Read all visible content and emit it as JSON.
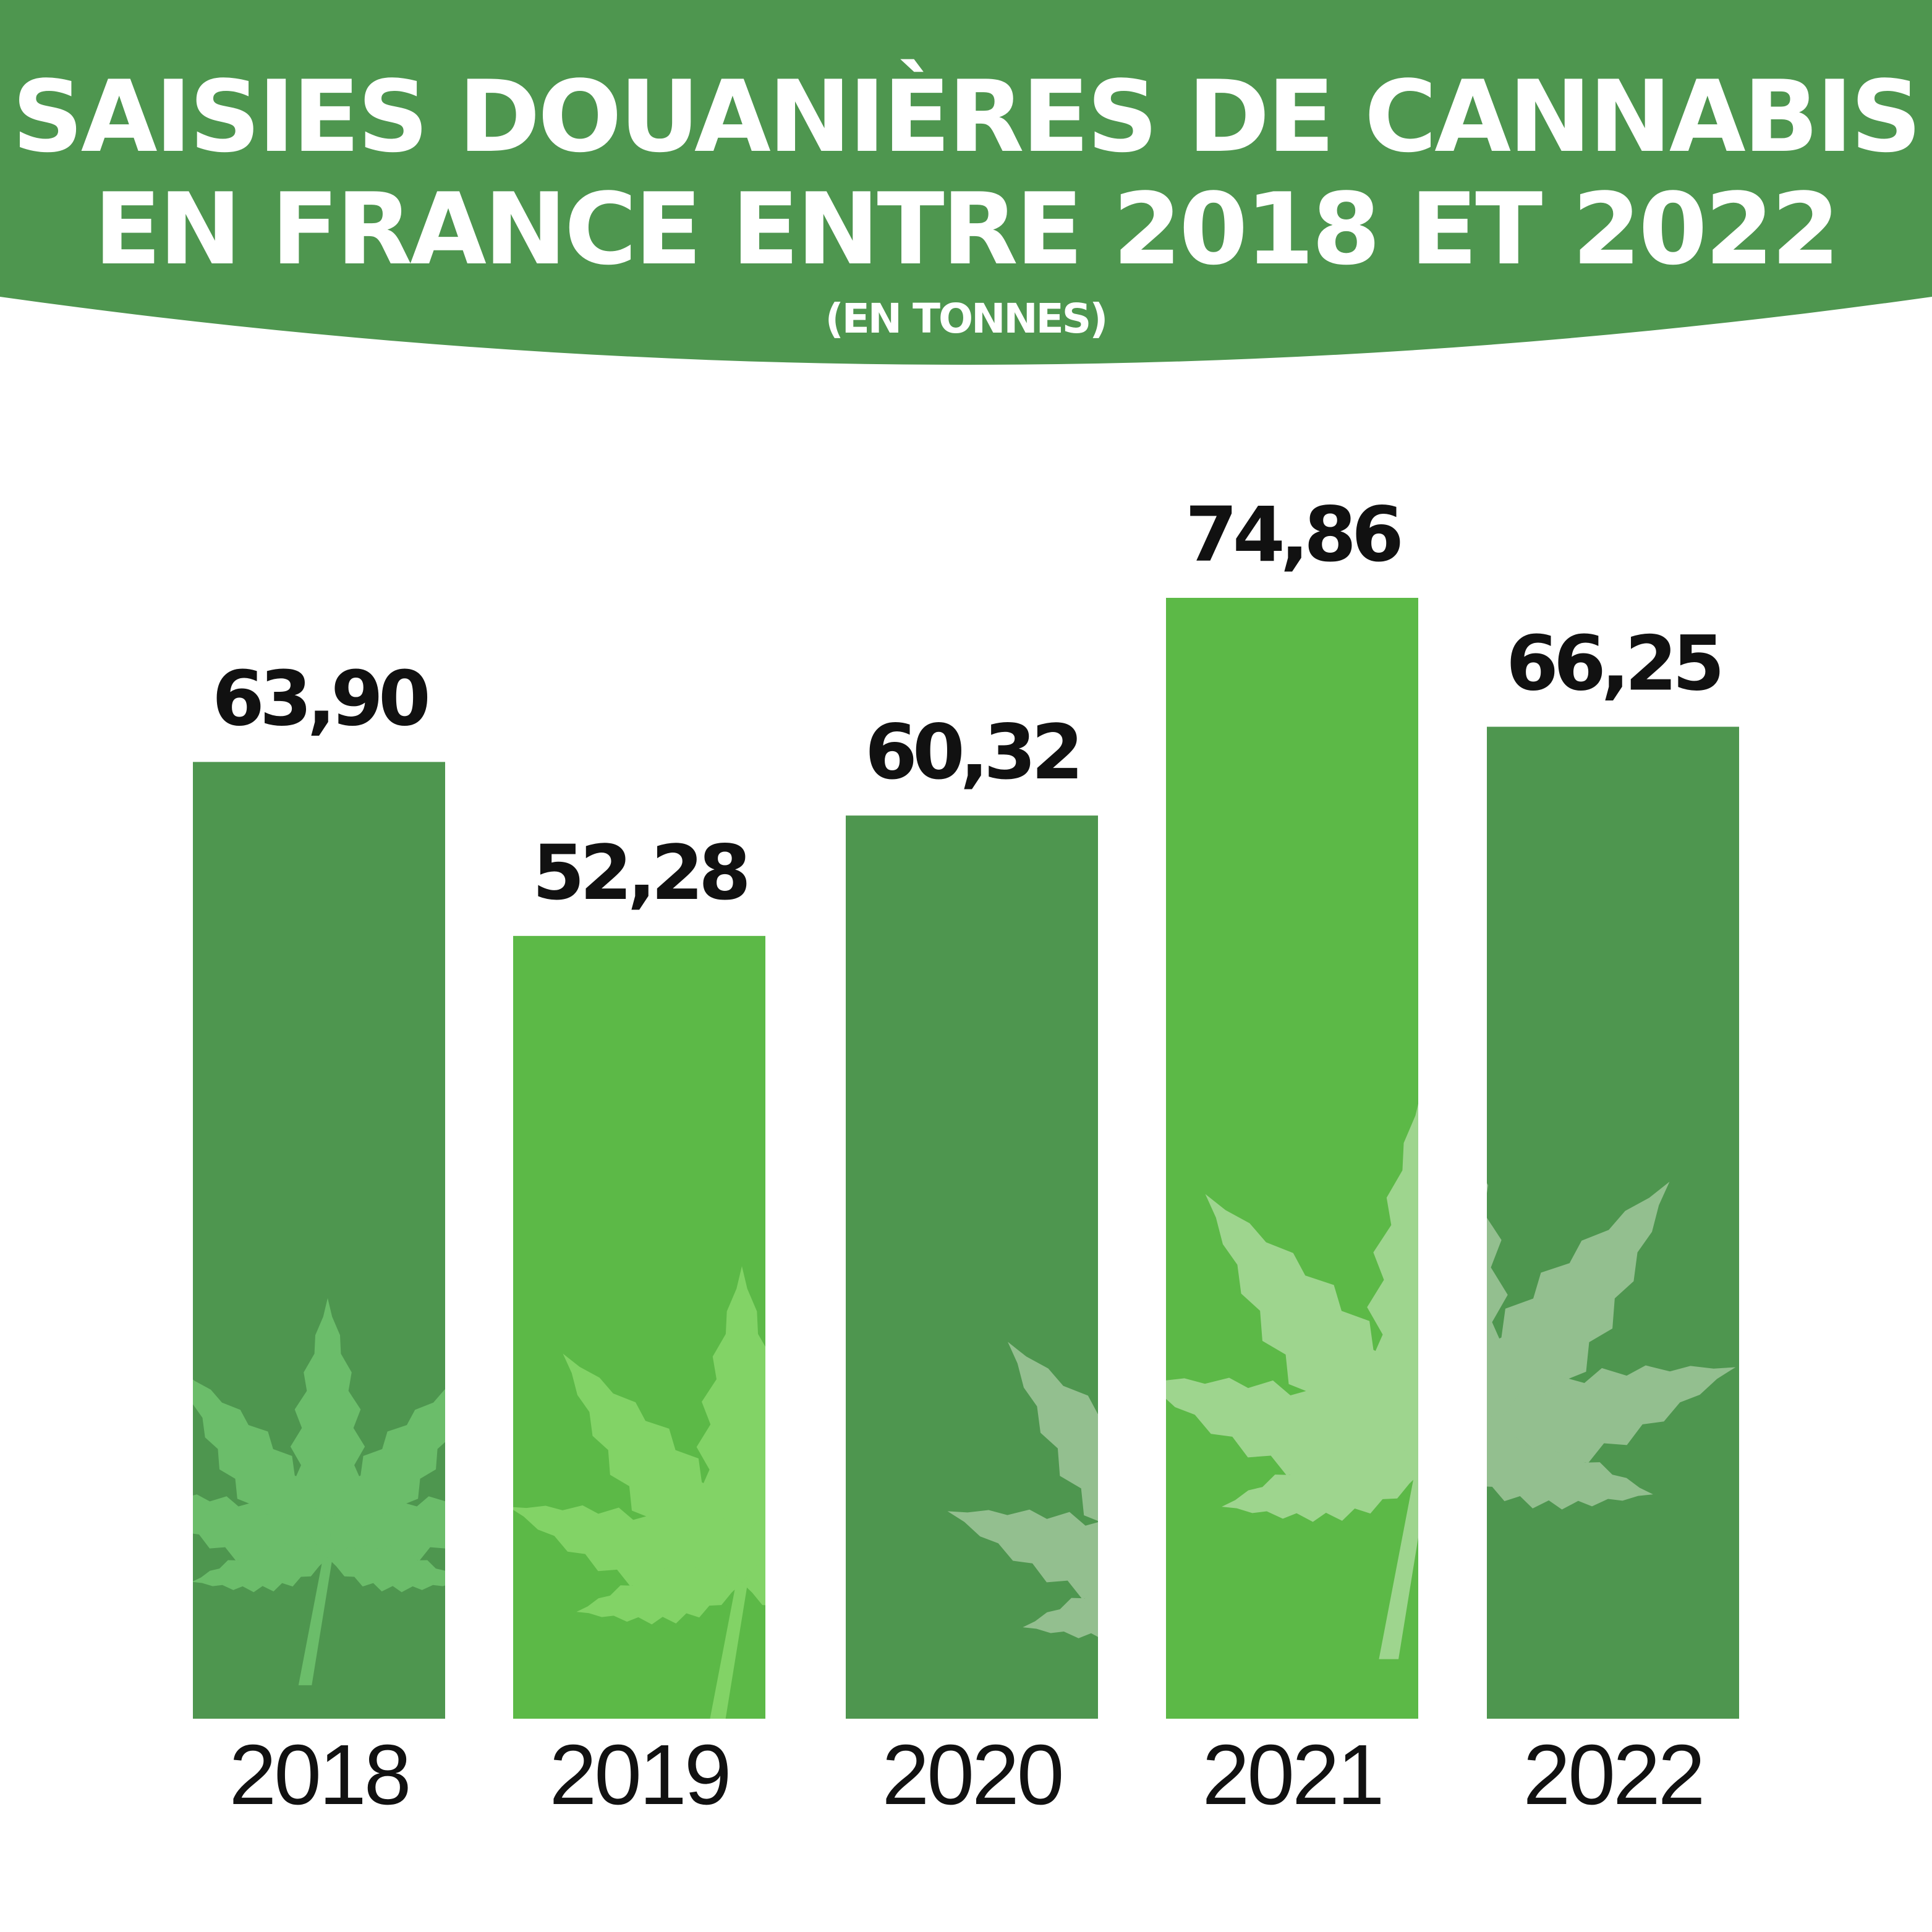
{
  "header": {
    "title_line1": "SAISIES DOUANIÈRES DE CANNABIS",
    "title_line2": "EN FRANCE ENTRE 2018 ET 2022",
    "subtitle": "(EN TONNES)"
  },
  "colors": {
    "header_green": "#4e964f",
    "bar_dark": "#4e964f",
    "bar_light": "#5cb947",
    "leaf_on_dark": "#6bbd6a",
    "leaf_on_light": "#82d366",
    "leaf_pale": "#9ed58e",
    "leaf_muted": "#93bf8f"
  },
  "chart_data": {
    "type": "bar",
    "categories": [
      "2018",
      "2019",
      "2020",
      "2021",
      "2022"
    ],
    "values": [
      63.9,
      52.28,
      60.32,
      74.86,
      66.25
    ],
    "value_labels": [
      "63,90",
      "52,28",
      "60,32",
      "74,86",
      "66,25"
    ],
    "title": "SAISIES DOUANIÈRES DE CANNABIS EN FRANCE ENTRE 2018 ET 2022",
    "subtitle": "(EN TONNES)",
    "xlabel": "",
    "ylabel": "",
    "grid": false,
    "legend": "none"
  }
}
